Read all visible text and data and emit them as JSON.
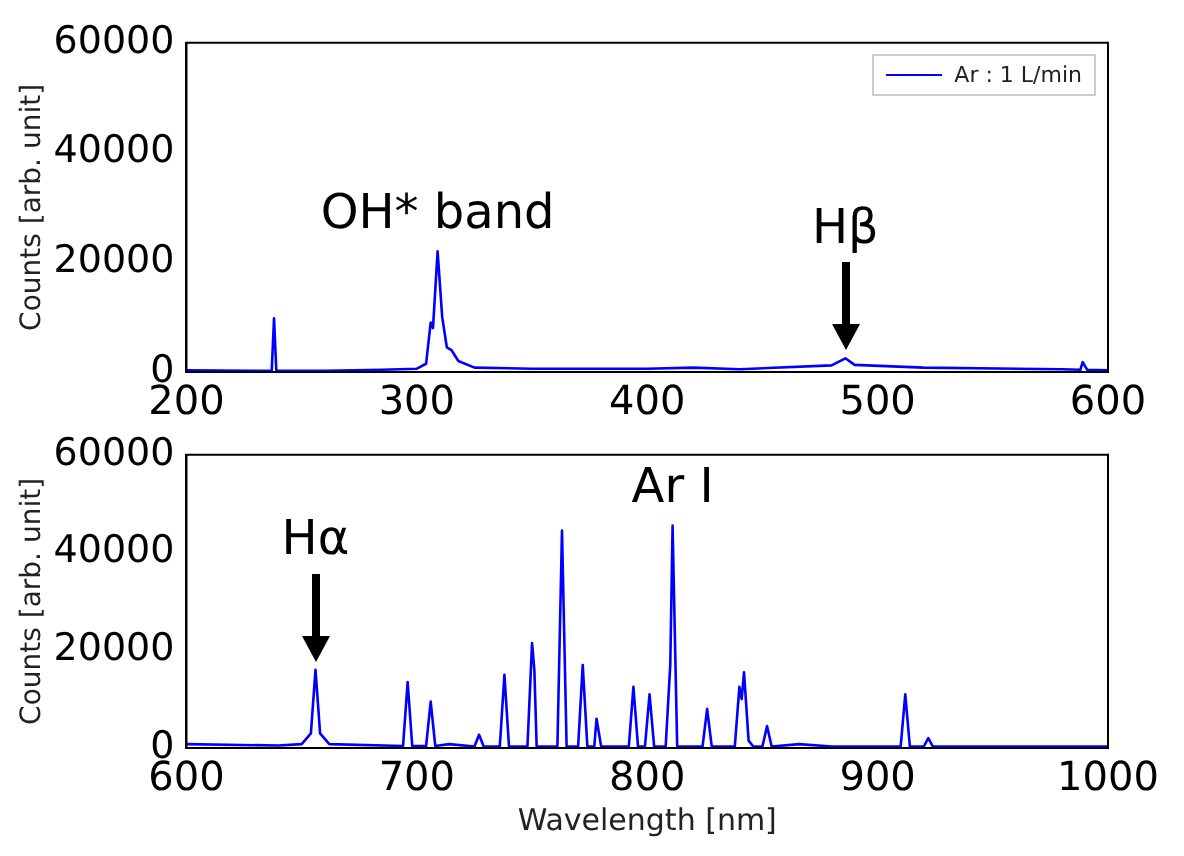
{
  "chart_data": [
    {
      "type": "line",
      "ylabel": "Counts [arb. unit]",
      "legend": "top right",
      "x": [
        200,
        230,
        237,
        238,
        239,
        260,
        285,
        300,
        304,
        306,
        307,
        309,
        311,
        313,
        315,
        318,
        325,
        350,
        400,
        420,
        440,
        480,
        486,
        490,
        520,
        580,
        588,
        589,
        591,
        600
      ],
      "series": [
        {
          "name": "Ar : 1 L/min",
          "color": "#0000ff",
          "values": [
            300,
            200,
            200,
            9800,
            200,
            200,
            400,
            600,
            1500,
            9000,
            8000,
            22000,
            10000,
            4500,
            4000,
            2000,
            800,
            600,
            600,
            800,
            500,
            1200,
            2500,
            1300,
            800,
            500,
            400,
            1800,
            400,
            300
          ]
        }
      ],
      "xlim": [
        200,
        600
      ],
      "xticks": [
        200,
        300,
        400,
        500,
        600
      ],
      "ylim": [
        0,
        60000
      ],
      "yticks": [
        0,
        20000,
        40000,
        60000
      ],
      "grid": false,
      "annotations": [
        {
          "text": "OH* band",
          "x": 309,
          "y": 22000
        },
        {
          "text": "Hβ",
          "x": 486,
          "y": 2500
        }
      ]
    },
    {
      "type": "line",
      "xlabel": "Wavelength [nm]",
      "ylabel": "Counts [arb. unit]",
      "x": [
        600,
        640,
        650,
        654,
        656,
        658,
        662,
        694,
        696,
        698,
        704,
        706,
        708,
        714,
        725,
        727,
        729,
        736,
        738,
        740,
        748,
        750,
        751,
        752,
        761,
        763,
        765,
        770,
        772,
        774,
        777,
        778,
        780,
        792,
        794,
        796,
        799,
        801,
        803,
        808,
        810,
        811,
        813,
        824,
        826,
        828,
        838,
        840,
        841,
        842,
        844,
        846,
        850,
        852,
        854,
        866,
        880,
        910,
        912,
        914,
        920,
        922,
        924,
        1000
      ],
      "series": [
        {
          "color": "#0000ff",
          "values": [
            800,
            500,
            800,
            3000,
            16000,
            3000,
            800,
            400,
            13500,
            400,
            400,
            9500,
            400,
            800,
            300,
            2700,
            300,
            300,
            15000,
            300,
            300,
            21500,
            16000,
            300,
            300,
            44500,
            300,
            300,
            17000,
            300,
            300,
            6000,
            300,
            300,
            12500,
            300,
            300,
            11000,
            300,
            300,
            17000,
            45500,
            300,
            300,
            8000,
            300,
            300,
            12500,
            10000,
            15500,
            1500,
            300,
            300,
            4500,
            300,
            800,
            300,
            300,
            11000,
            300,
            300,
            2000,
            300,
            300
          ]
        }
      ],
      "xlim": [
        600,
        1000
      ],
      "xticks": [
        600,
        700,
        800,
        900,
        1000
      ],
      "ylim": [
        0,
        60000
      ],
      "yticks": [
        0,
        20000,
        40000,
        60000
      ],
      "grid": false,
      "annotations": [
        {
          "text": "Hα",
          "x": 656,
          "y": 16000
        },
        {
          "text": "Ar I",
          "x": 811,
          "y": 45500
        }
      ]
    }
  ]
}
